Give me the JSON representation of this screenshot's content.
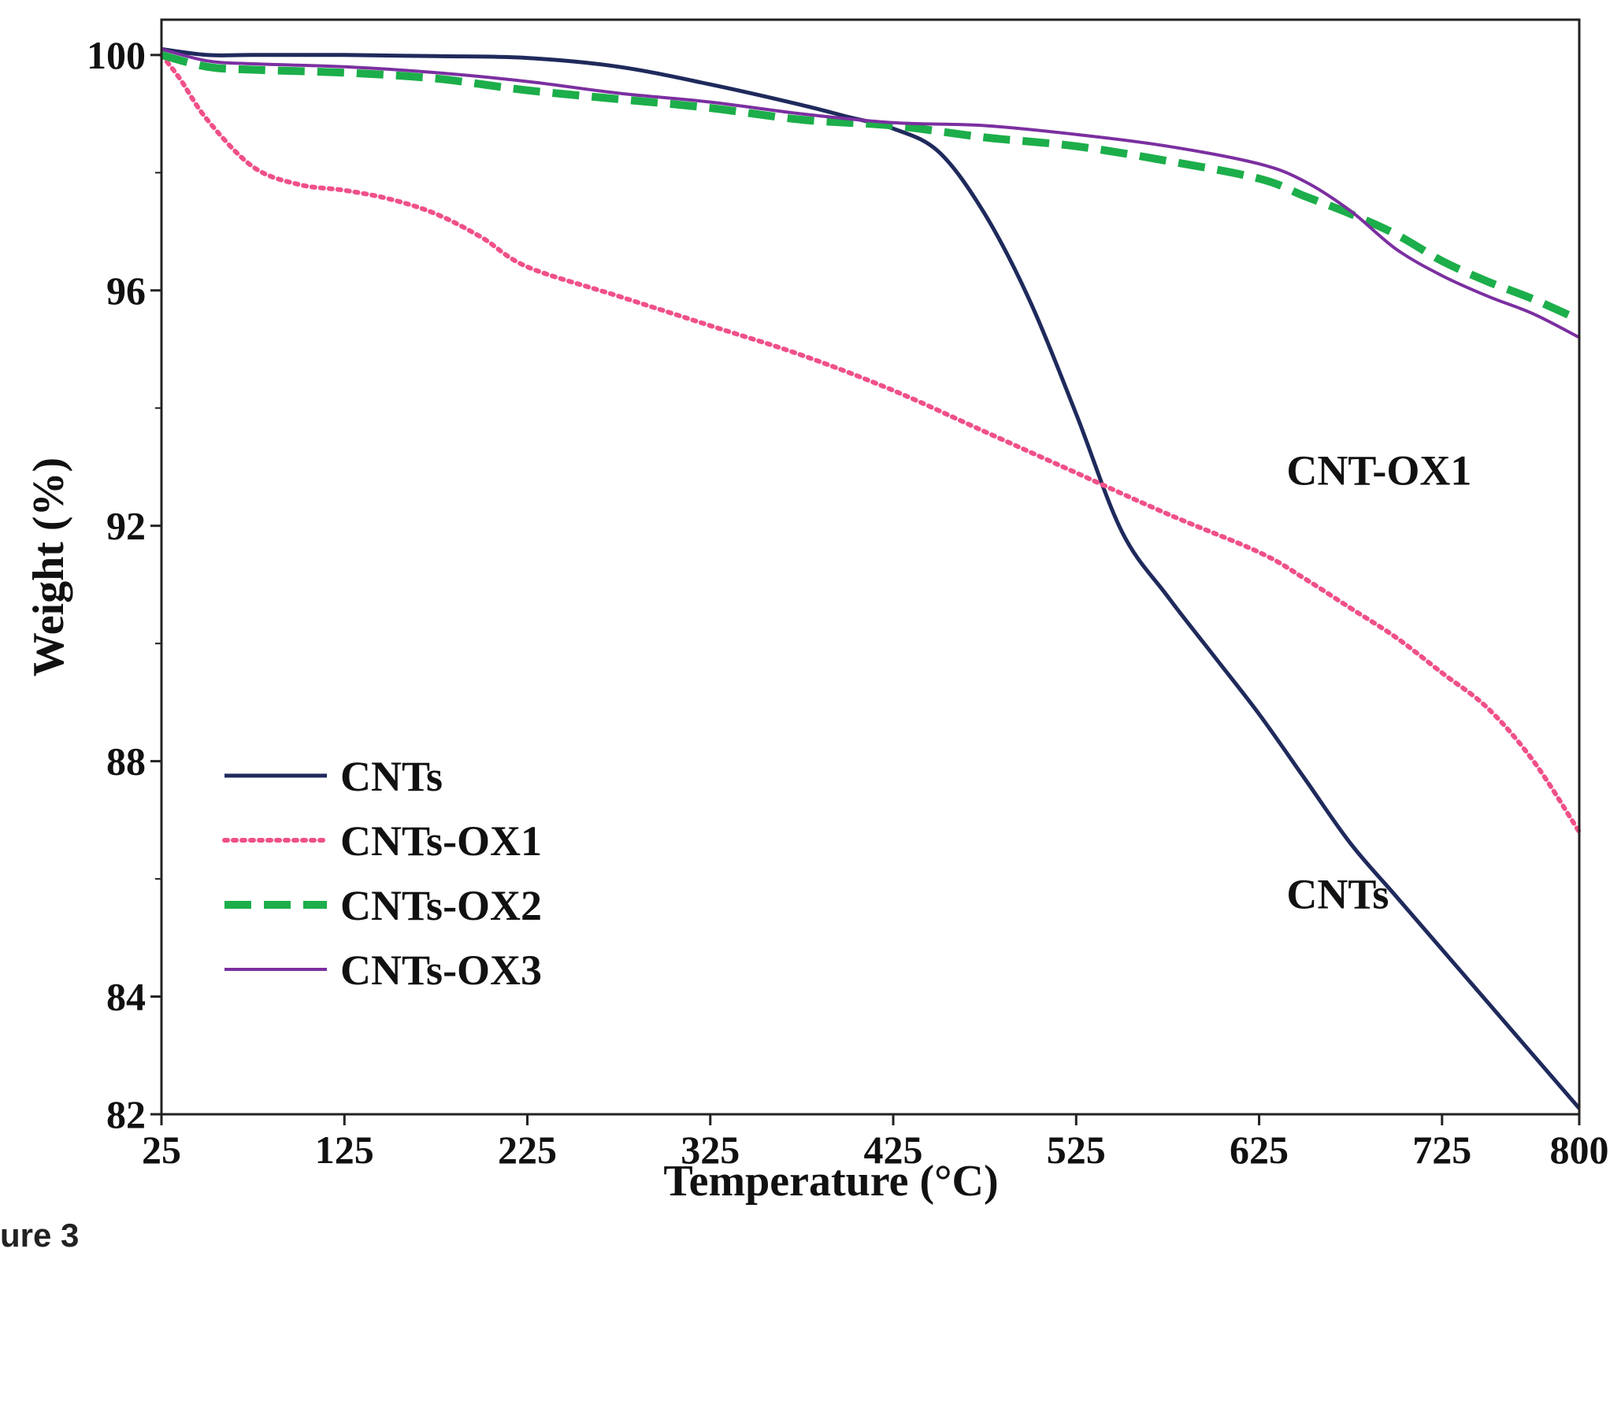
{
  "caption": "ure 3",
  "chart_data": {
    "type": "line",
    "title": "",
    "xlabel": "Temperature (°C)",
    "ylabel": "Weight (%)",
    "xlim": [
      25,
      800
    ],
    "ylim": [
      82,
      100.6
    ],
    "xticks": [
      25,
      125,
      225,
      325,
      425,
      525,
      625,
      725,
      800
    ],
    "yticks": [
      100,
      96,
      92,
      88,
      84,
      82
    ],
    "grid": false,
    "legend_position": "bottom-left",
    "series": [
      {
        "name": "CNTs",
        "color": "#1f2a5c",
        "style": "solid",
        "x": [
          25,
          50,
          75,
          125,
          175,
          225,
          275,
          325,
          375,
          400,
          425,
          450,
          475,
          500,
          525,
          550,
          575,
          600,
          625,
          650,
          675,
          700,
          725,
          750,
          775,
          800
        ],
        "y": [
          100.1,
          100.0,
          100.0,
          100.0,
          99.98,
          99.95,
          99.8,
          99.5,
          99.15,
          98.95,
          98.75,
          98.35,
          97.3,
          95.8,
          93.9,
          91.9,
          90.8,
          89.8,
          88.8,
          87.7,
          86.6,
          85.7,
          84.8,
          83.9,
          83.0,
          82.1
        ]
      },
      {
        "name": "CNTs-OX1",
        "color": "#f0508a",
        "style": "dotted",
        "x": [
          25,
          35,
          50,
          75,
          100,
          125,
          150,
          175,
          200,
          225,
          275,
          325,
          375,
          425,
          475,
          525,
          575,
          625,
          650,
          675,
          700,
          725,
          750,
          775,
          800
        ],
        "y": [
          100.0,
          99.6,
          98.9,
          98.1,
          97.8,
          97.7,
          97.55,
          97.3,
          96.9,
          96.4,
          95.9,
          95.4,
          94.9,
          94.3,
          93.6,
          92.9,
          92.2,
          91.55,
          91.1,
          90.6,
          90.1,
          89.5,
          88.9,
          88.0,
          86.8
        ]
      },
      {
        "name": "CNTs-OX2",
        "color": "#1cae4a",
        "style": "dashed",
        "x": [
          25,
          50,
          75,
          125,
          175,
          225,
          275,
          325,
          375,
          425,
          475,
          525,
          575,
          625,
          650,
          675,
          700,
          725,
          750,
          775,
          800
        ],
        "y": [
          100.0,
          99.8,
          99.75,
          99.7,
          99.6,
          99.4,
          99.25,
          99.1,
          98.9,
          98.8,
          98.6,
          98.45,
          98.2,
          97.9,
          97.6,
          97.3,
          96.95,
          96.5,
          96.15,
          95.85,
          95.5
        ]
      },
      {
        "name": "CNTs-OX3",
        "color": "#7b2fa0",
        "style": "solid",
        "x": [
          25,
          50,
          75,
          125,
          175,
          225,
          275,
          325,
          375,
          425,
          475,
          525,
          575,
          625,
          650,
          675,
          700,
          725,
          750,
          775,
          800
        ],
        "y": [
          100.1,
          99.9,
          99.85,
          99.8,
          99.7,
          99.55,
          99.35,
          99.2,
          99.0,
          98.85,
          98.8,
          98.65,
          98.45,
          98.15,
          97.85,
          97.35,
          96.7,
          96.25,
          95.9,
          95.6,
          95.2
        ]
      }
    ],
    "annotations": [
      {
        "text": "CNT-OX1",
        "x": 640,
        "y": 92.7
      },
      {
        "text": "CNTs",
        "x": 640,
        "y": 85.5
      }
    ]
  }
}
